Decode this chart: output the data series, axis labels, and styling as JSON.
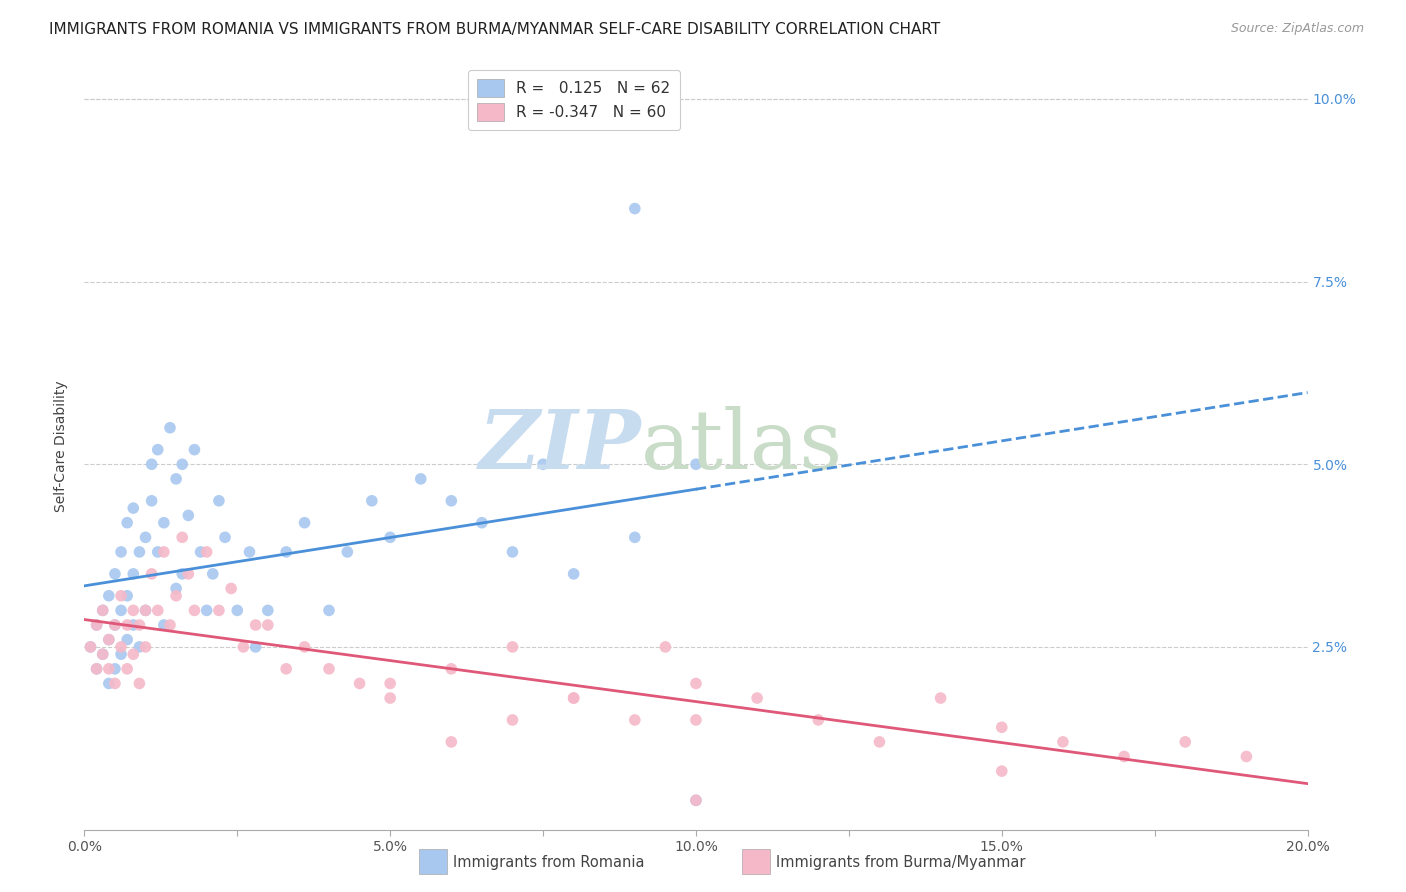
{
  "title": "IMMIGRANTS FROM ROMANIA VS IMMIGRANTS FROM BURMA/MYANMAR SELF-CARE DISABILITY CORRELATION CHART",
  "source": "Source: ZipAtlas.com",
  "ylabel": "Self-Care Disability",
  "xlim": [
    0.0,
    0.2
  ],
  "ylim": [
    0.0,
    0.105
  ],
  "xtick_labels": [
    "0.0%",
    "",
    "5.0%",
    "",
    "10.0%",
    "",
    "15.0%",
    "",
    "20.0%"
  ],
  "xtick_vals": [
    0.0,
    0.025,
    0.05,
    0.075,
    0.1,
    0.125,
    0.15,
    0.175,
    0.2
  ],
  "ytick_labels_right": [
    "2.5%",
    "5.0%",
    "7.5%",
    "10.0%"
  ],
  "ytick_vals_right": [
    0.025,
    0.05,
    0.075,
    0.1
  ],
  "legend_romania": "Immigrants from Romania",
  "legend_burma": "Immigrants from Burma/Myanmar",
  "r_romania": 0.125,
  "n_romania": 62,
  "r_burma": -0.347,
  "n_burma": 60,
  "color_romania": "#A8C8F0",
  "color_burma": "#F5B8C8",
  "trendline_color_romania": "#4A90D9",
  "trendline_color_burma": "#E05878",
  "watermark_zip_color": "#C8DCF0",
  "watermark_atlas_color": "#C8DCC8",
  "background_color": "#FFFFFF",
  "grid_color": "#CCCCCC",
  "title_fontsize": 11,
  "tick_fontsize": 10,
  "ylabel_fontsize": 10,
  "romania_x": [
    0.001,
    0.002,
    0.002,
    0.003,
    0.003,
    0.004,
    0.004,
    0.004,
    0.005,
    0.005,
    0.005,
    0.006,
    0.006,
    0.006,
    0.007,
    0.007,
    0.007,
    0.008,
    0.008,
    0.008,
    0.009,
    0.009,
    0.01,
    0.01,
    0.011,
    0.011,
    0.012,
    0.012,
    0.013,
    0.013,
    0.014,
    0.015,
    0.015,
    0.016,
    0.016,
    0.017,
    0.018,
    0.019,
    0.02,
    0.021,
    0.022,
    0.023,
    0.025,
    0.027,
    0.028,
    0.03,
    0.033,
    0.036,
    0.04,
    0.043,
    0.047,
    0.05,
    0.055,
    0.06,
    0.065,
    0.07,
    0.075,
    0.08,
    0.09,
    0.1,
    0.09,
    0.1
  ],
  "romania_y": [
    0.025,
    0.028,
    0.022,
    0.03,
    0.024,
    0.026,
    0.032,
    0.02,
    0.028,
    0.035,
    0.022,
    0.03,
    0.038,
    0.024,
    0.032,
    0.042,
    0.026,
    0.035,
    0.044,
    0.028,
    0.038,
    0.025,
    0.04,
    0.03,
    0.045,
    0.05,
    0.038,
    0.052,
    0.042,
    0.028,
    0.055,
    0.048,
    0.033,
    0.05,
    0.035,
    0.043,
    0.052,
    0.038,
    0.03,
    0.035,
    0.045,
    0.04,
    0.03,
    0.038,
    0.025,
    0.03,
    0.038,
    0.042,
    0.03,
    0.038,
    0.045,
    0.04,
    0.048,
    0.045,
    0.042,
    0.038,
    0.05,
    0.035,
    0.04,
    0.05,
    0.085,
    0.004
  ],
  "burma_x": [
    0.001,
    0.002,
    0.002,
    0.003,
    0.003,
    0.004,
    0.004,
    0.005,
    0.005,
    0.006,
    0.006,
    0.007,
    0.007,
    0.008,
    0.008,
    0.009,
    0.009,
    0.01,
    0.01,
    0.011,
    0.012,
    0.013,
    0.014,
    0.015,
    0.016,
    0.017,
    0.018,
    0.02,
    0.022,
    0.024,
    0.026,
    0.028,
    0.03,
    0.033,
    0.036,
    0.04,
    0.045,
    0.05,
    0.06,
    0.07,
    0.08,
    0.09,
    0.1,
    0.11,
    0.12,
    0.13,
    0.14,
    0.15,
    0.16,
    0.17,
    0.18,
    0.19,
    0.095,
    0.1,
    0.05,
    0.06,
    0.07,
    0.08,
    0.15,
    0.1
  ],
  "burma_y": [
    0.025,
    0.028,
    0.022,
    0.03,
    0.024,
    0.026,
    0.022,
    0.028,
    0.02,
    0.025,
    0.032,
    0.028,
    0.022,
    0.03,
    0.024,
    0.028,
    0.02,
    0.03,
    0.025,
    0.035,
    0.03,
    0.038,
    0.028,
    0.032,
    0.04,
    0.035,
    0.03,
    0.038,
    0.03,
    0.033,
    0.025,
    0.028,
    0.028,
    0.022,
    0.025,
    0.022,
    0.02,
    0.018,
    0.022,
    0.025,
    0.018,
    0.015,
    0.02,
    0.018,
    0.015,
    0.012,
    0.018,
    0.014,
    0.012,
    0.01,
    0.012,
    0.01,
    0.025,
    0.015,
    0.02,
    0.012,
    0.015,
    0.018,
    0.008,
    0.004
  ]
}
